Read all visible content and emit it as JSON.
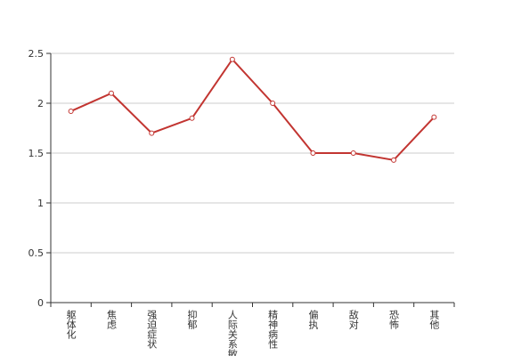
{
  "chart_data": {
    "type": "line",
    "categories": [
      "躯体化",
      "焦虑",
      "强迫症状",
      "抑郁",
      "人际关系敏感",
      "精神病性",
      "偏执",
      "敌对",
      "恐怖",
      "其他"
    ],
    "values": [
      1.92,
      2.1,
      1.7,
      1.85,
      2.44,
      2.0,
      1.5,
      1.5,
      1.43,
      1.86
    ],
    "color": "#c23531",
    "ylim": [
      0,
      2.5
    ],
    "yticks": [
      0,
      0.5,
      1,
      1.5,
      2,
      2.5
    ],
    "grid": true
  }
}
